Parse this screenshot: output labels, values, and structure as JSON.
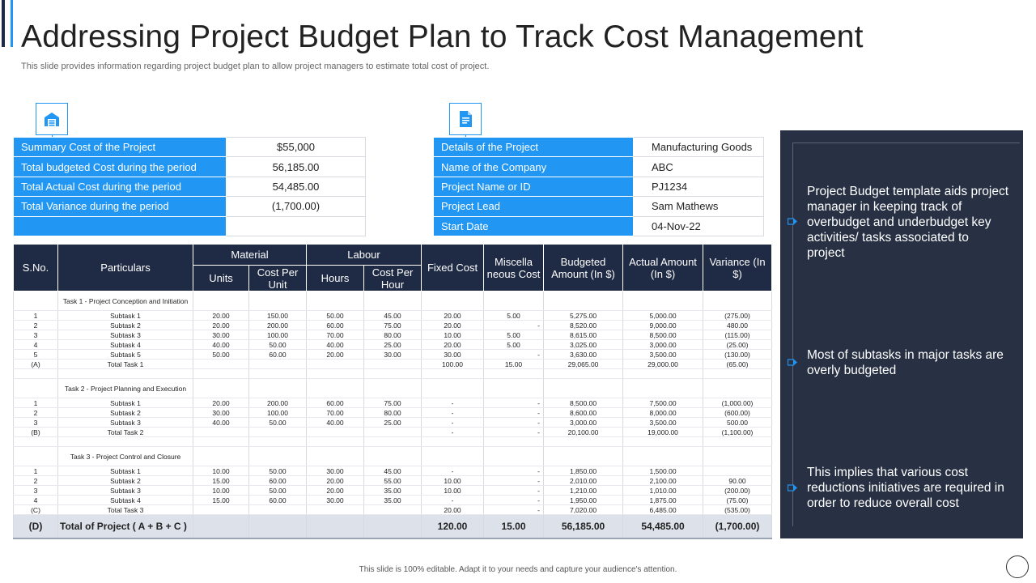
{
  "page": {
    "title": "Addressing Project Budget Plan to Track Cost Management",
    "subtitle": "This slide provides information regarding project budget plan to allow project managers to estimate total cost of project.",
    "footer": "This slide is 100% editable. Adapt it to your needs and capture your audience's attention."
  },
  "icons": {
    "summary": "warehouse-icon",
    "details": "document-icon"
  },
  "summary": [
    {
      "label": "Summary Cost of the Project",
      "value": "$55,000"
    },
    {
      "label": "Total budgeted Cost during the period",
      "value": "56,185.00"
    },
    {
      "label": "Total Actual Cost during the period",
      "value": "54,485.00"
    },
    {
      "label": "Total Variance during the period",
      "value": "(1,700.00)"
    },
    {
      "label": "",
      "value": ""
    }
  ],
  "details": [
    {
      "label": "Details of the Project",
      "value": "Manufacturing Goods"
    },
    {
      "label": "Name of the Company",
      "value": "ABC"
    },
    {
      "label": "Project Name or ID",
      "value": "PJ1234"
    },
    {
      "label": "Project Lead",
      "value": "Sam Mathews"
    },
    {
      "label": "Start Date",
      "value": "04-Nov-22"
    }
  ],
  "budget": {
    "headers": {
      "sno": "S.No.",
      "particulars": "Particulars",
      "material": "Material",
      "units": "Units",
      "cost_per_unit": "Cost Per Unit",
      "labour": "Labour",
      "hours": "Hours",
      "cost_per_hour": "Cost Per Hour",
      "fixed_cost": "Fixed Cost",
      "misc_cost": "Miscella neous Cost",
      "budgeted": "Budgeted Amount (In $)",
      "actual": "Actual Amount (In $)",
      "variance": "Variance (In $)"
    },
    "groups": [
      {
        "task": "Task 1 - Project Conception and Initiation",
        "rows": [
          [
            "1",
            "Subtask 1",
            "20.00",
            "150.00",
            "50.00",
            "45.00",
            "20.00",
            "5.00",
            "5,275.00",
            "5,000.00",
            "(275.00)"
          ],
          [
            "2",
            "Subtask 2",
            "20.00",
            "200.00",
            "60.00",
            "75.00",
            "20.00",
            "-",
            "8,520.00",
            "9,000.00",
            "480.00"
          ],
          [
            "3",
            "Subtask 3",
            "30.00",
            "100.00",
            "70.00",
            "80.00",
            "10.00",
            "5.00",
            "8,615.00",
            "8,500.00",
            "(115.00)"
          ],
          [
            "4",
            "Subtask 4",
            "40.00",
            "50.00",
            "40.00",
            "25.00",
            "20.00",
            "5.00",
            "3,025.00",
            "3,000.00",
            "(25.00)"
          ],
          [
            "5",
            "Subtask 5",
            "50.00",
            "60.00",
            "20.00",
            "30.00",
            "30.00",
            "-",
            "3,630.00",
            "3,500.00",
            "(130.00)"
          ]
        ],
        "total": [
          "(A)",
          "Total Task 1",
          "",
          "",
          "",
          "",
          "100.00",
          "15.00",
          "29,065.00",
          "29,000.00",
          "(65.00)"
        ]
      },
      {
        "task": "Task 2 - Project Planning and Execution",
        "rows": [
          [
            "1",
            "Subtask 1",
            "20.00",
            "200.00",
            "60.00",
            "75.00",
            "-",
            "-",
            "8,500.00",
            "7,500.00",
            "(1,000.00)"
          ],
          [
            "2",
            "Subtask 2",
            "30.00",
            "100.00",
            "70.00",
            "80.00",
            "-",
            "-",
            "8,600.00",
            "8,000.00",
            "(600.00)"
          ],
          [
            "3",
            "Subtask 3",
            "40.00",
            "50.00",
            "40.00",
            "25.00",
            "-",
            "-",
            "3,000.00",
            "3,500.00",
            "500.00"
          ]
        ],
        "total": [
          "(B)",
          "Total Task 2",
          "",
          "",
          "",
          "",
          "-",
          "-",
          "20,100.00",
          "19,000.00",
          "(1,100.00)"
        ]
      },
      {
        "task": "Task 3 - Project Control and Closure",
        "rows": [
          [
            "1",
            "Subtask 1",
            "10.00",
            "50.00",
            "30.00",
            "45.00",
            "-",
            "-",
            "1,850.00",
            "1,500.00",
            ""
          ],
          [
            "2",
            "Subtask 2",
            "15.00",
            "60.00",
            "20.00",
            "55.00",
            "10.00",
            "-",
            "2,010.00",
            "2,100.00",
            "90.00"
          ],
          [
            "3",
            "Subtask 3",
            "10.00",
            "50.00",
            "20.00",
            "35.00",
            "10.00",
            "-",
            "1,210.00",
            "1,010.00",
            "(200.00)"
          ],
          [
            "4",
            "Subtask 4",
            "15.00",
            "60.00",
            "30.00",
            "35.00",
            "-",
            "-",
            "1,950.00",
            "1,875.00",
            "(75.00)"
          ]
        ],
        "total": [
          "(C)",
          "Total Task 3",
          "",
          "",
          "",
          "",
          "20.00",
          "-",
          "7,020.00",
          "6,485.00",
          "(535.00)"
        ]
      }
    ],
    "grand_total": [
      "(D)",
      "Total of Project ( A + B + C )",
      "",
      "",
      "",
      "",
      "120.00",
      "15.00",
      "56,185.00",
      "54,485.00",
      "(1,700.00)"
    ]
  },
  "insights": [
    "Project Budget template aids project manager in keeping track of overbudget and underbudget key activities/ tasks associated to project",
    "Most of subtasks in major tasks are overly budgeted",
    "This implies that various cost reductions initiatives are required in order to reduce overall cost"
  ],
  "colors": {
    "accent": "#2196f3",
    "dark": "#1f2a44",
    "panel": "#283044",
    "negative": "#d0021b"
  }
}
